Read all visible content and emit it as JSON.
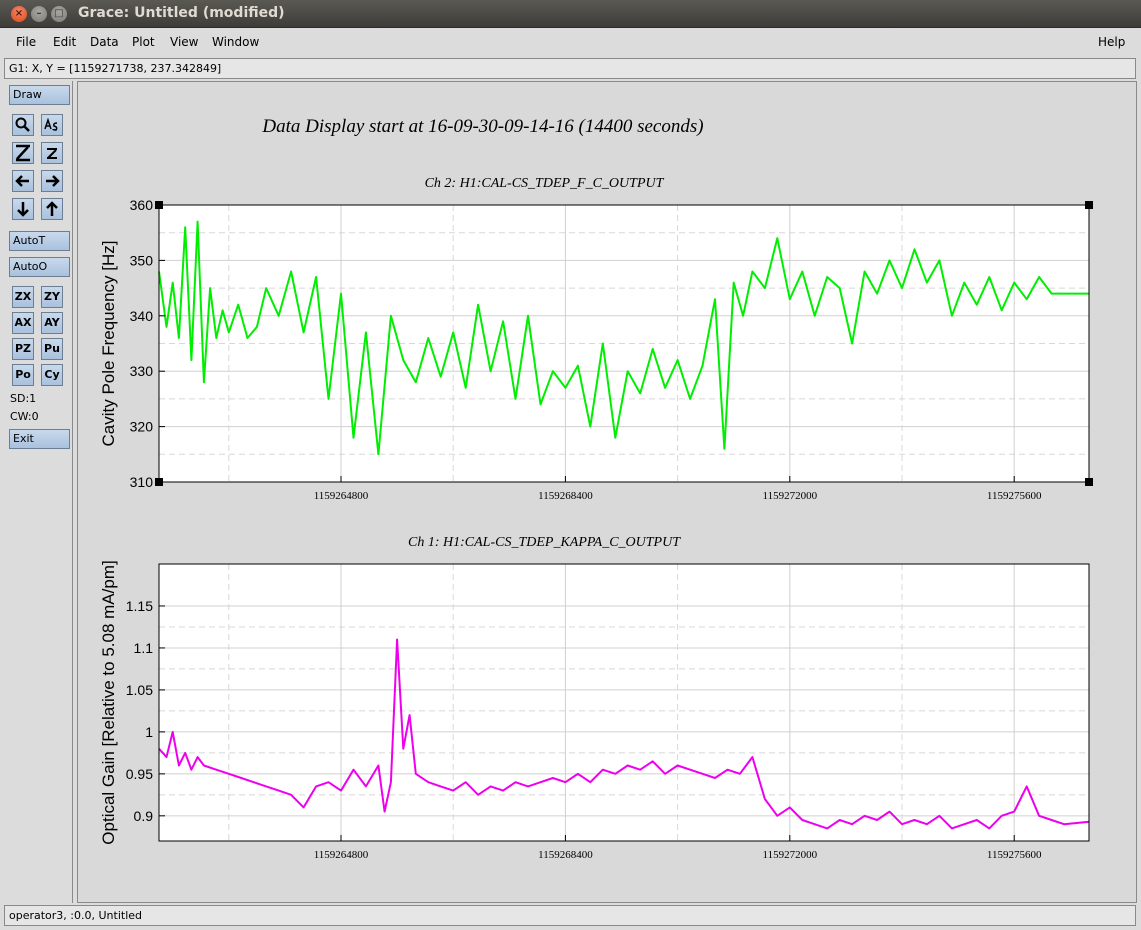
{
  "window": {
    "title": "Grace: Untitled (modified)",
    "close_glyph": "×",
    "min_glyph": "–",
    "max_glyph": "□"
  },
  "menubar": {
    "file": "File",
    "edit": "Edit",
    "data": "Data",
    "plot": "Plot",
    "view": "View",
    "window": "Window",
    "help": "Help"
  },
  "locator": {
    "text": "G1: X, Y = [1159271738, 237.342849]"
  },
  "toolbox": {
    "draw": "Draw",
    "autot": "AutoT",
    "autoo": "AutoO",
    "zx": "ZX",
    "zy": "ZY",
    "ax": "AX",
    "ay": "AY",
    "pz": "PZ",
    "pu": "Pu",
    "po": "Po",
    "cy": "Cy",
    "sd": "SD:1",
    "cw": "CW:0",
    "exit": "Exit",
    "icons": [
      "zoom-icon",
      "text-label-icon",
      "zoom-in-icon",
      "zoom-out-icon",
      "left-arrow-icon",
      "right-arrow-icon",
      "down-arrow-icon",
      "up-arrow-icon"
    ]
  },
  "status": {
    "text": "operator3, :0.0, Untitled"
  },
  "plot": {
    "main_title": "Data Display start at 16-09-30-09-14-16 (14400 seconds)"
  },
  "chart_data": [
    {
      "type": "line",
      "title": "Ch 2: H1:CAL-CS_TDEP_F_C_OUTPUT",
      "ylabel": "Cavity Pole Frequency [Hz]",
      "xlabel": "",
      "xlim": [
        1159261880,
        1159276800
      ],
      "ylim": [
        310,
        360
      ],
      "xticks": [
        1159264800,
        1159268400,
        1159272000,
        1159275600
      ],
      "xtick_labels": [
        "1159264800",
        "1159268400",
        "1159272000",
        "1159275600"
      ],
      "yticks": [
        310,
        320,
        330,
        340,
        350,
        360
      ],
      "ytick_labels": [
        "310",
        "320",
        "330",
        "340",
        "350",
        "360"
      ],
      "grid": true,
      "color": "#00ee00",
      "series": [
        {
          "x": [
            1159261880,
            1159262000,
            1159262100,
            1159262200,
            1159262300,
            1159262400,
            1159262500,
            1159262600,
            1159262700,
            1159262800,
            1159262900,
            1159263000,
            1159263150,
            1159263300,
            1159263450,
            1159263600,
            1159263800,
            1159264000,
            1159264200,
            1159264400,
            1159264600,
            1159264800,
            1159265000,
            1159265200,
            1159265400,
            1159265600,
            1159265800,
            1159266000,
            1159266200,
            1159266400,
            1159266600,
            1159266800,
            1159267000,
            1159267200,
            1159267400,
            1159267600,
            1159267800,
            1159268000,
            1159268200,
            1159268400,
            1159268600,
            1159268800,
            1159269000,
            1159269200,
            1159269400,
            1159269600,
            1159269800,
            1159270000,
            1159270200,
            1159270400,
            1159270600,
            1159270800,
            1159270950,
            1159271100,
            1159271250,
            1159271400,
            1159271600,
            1159271800,
            1159272000,
            1159272200,
            1159272400,
            1159272600,
            1159272800,
            1159273000,
            1159273200,
            1159273400,
            1159273600,
            1159273800,
            1159274000,
            1159274200,
            1159274400,
            1159274600,
            1159274800,
            1159275000,
            1159275200,
            1159275400,
            1159275600,
            1159275800,
            1159276000,
            1159276200,
            1159276400,
            1159276800
          ],
          "y": [
            348,
            338,
            346,
            336,
            356,
            332,
            357,
            328,
            345,
            336,
            341,
            337,
            342,
            336,
            338,
            345,
            340,
            348,
            337,
            347,
            325,
            344,
            318,
            337,
            315,
            340,
            332,
            328,
            336,
            329,
            337,
            327,
            342,
            330,
            339,
            325,
            340,
            324,
            330,
            327,
            331,
            320,
            335,
            318,
            330,
            326,
            334,
            327,
            332,
            325,
            331,
            343,
            316,
            346,
            340,
            348,
            345,
            354,
            343,
            348,
            340,
            347,
            345,
            335,
            348,
            344,
            350,
            345,
            352,
            346,
            350,
            340,
            346,
            342,
            347,
            341,
            346,
            343,
            347,
            344,
            344,
            344
          ]
        }
      ]
    },
    {
      "type": "line",
      "title": "Ch 1: H1:CAL-CS_TDEP_KAPPA_C_OUTPUT",
      "ylabel": "Optical Gain [Relative to 5.08 mA/pm]",
      "xlabel": "",
      "xlim": [
        1159261880,
        1159276800
      ],
      "ylim": [
        0.87,
        1.2
      ],
      "xticks": [
        1159264800,
        1159268400,
        1159272000,
        1159275600
      ],
      "xtick_labels": [
        "1159264800",
        "1159268400",
        "1159272000",
        "1159275600"
      ],
      "yticks": [
        0.9,
        0.95,
        1,
        1.05,
        1.1,
        1.15
      ],
      "ytick_labels": [
        "0.9",
        "0.95",
        "1",
        "1.05",
        "1.1",
        "1.15"
      ],
      "grid": true,
      "color": "#ee00ee",
      "series": [
        {
          "x": [
            1159261880,
            1159262000,
            1159262100,
            1159262200,
            1159262300,
            1159262400,
            1159262500,
            1159262600,
            1159262800,
            1159263000,
            1159263200,
            1159263400,
            1159263600,
            1159263800,
            1159264000,
            1159264200,
            1159264400,
            1159264600,
            1159264800,
            1159265000,
            1159265200,
            1159265400,
            1159265500,
            1159265600,
            1159265700,
            1159265800,
            1159265900,
            1159266000,
            1159266200,
            1159266400,
            1159266600,
            1159266800,
            1159267000,
            1159267200,
            1159267400,
            1159267600,
            1159267800,
            1159268000,
            1159268200,
            1159268400,
            1159268600,
            1159268800,
            1159269000,
            1159269200,
            1159269400,
            1159269600,
            1159269800,
            1159270000,
            1159270200,
            1159270400,
            1159270600,
            1159270800,
            1159271000,
            1159271200,
            1159271400,
            1159271600,
            1159271800,
            1159272000,
            1159272200,
            1159272400,
            1159272600,
            1159272800,
            1159273000,
            1159273200,
            1159273400,
            1159273600,
            1159273800,
            1159274000,
            1159274200,
            1159274400,
            1159274600,
            1159274800,
            1159275000,
            1159275200,
            1159275400,
            1159275600,
            1159275800,
            1159276000,
            1159276200,
            1159276400,
            1159276800
          ],
          "y": [
            0.98,
            0.97,
            1.0,
            0.96,
            0.975,
            0.955,
            0.97,
            0.96,
            0.955,
            0.95,
            0.945,
            0.94,
            0.935,
            0.93,
            0.925,
            0.91,
            0.935,
            0.94,
            0.93,
            0.955,
            0.935,
            0.96,
            0.905,
            0.94,
            1.11,
            0.98,
            1.02,
            0.95,
            0.94,
            0.935,
            0.93,
            0.94,
            0.925,
            0.935,
            0.93,
            0.94,
            0.935,
            0.94,
            0.945,
            0.94,
            0.95,
            0.94,
            0.955,
            0.95,
            0.96,
            0.955,
            0.965,
            0.95,
            0.96,
            0.955,
            0.95,
            0.945,
            0.955,
            0.95,
            0.97,
            0.92,
            0.9,
            0.91,
            0.895,
            0.89,
            0.885,
            0.895,
            0.89,
            0.9,
            0.895,
            0.905,
            0.89,
            0.895,
            0.89,
            0.9,
            0.885,
            0.89,
            0.895,
            0.885,
            0.9,
            0.905,
            0.935,
            0.9,
            0.895,
            0.89,
            0.893
          ]
        }
      ]
    }
  ]
}
